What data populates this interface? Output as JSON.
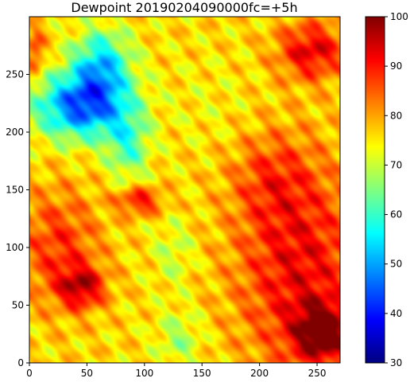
{
  "chart_data": {
    "type": "heatmap",
    "title": "Dewpoint 20190204090000fc=+5h",
    "xlabel": "",
    "ylabel": "",
    "xlim": [
      0,
      270
    ],
    "ylim": [
      0,
      300
    ],
    "x_ticks": [
      "0",
      "50",
      "100",
      "150",
      "200",
      "250"
    ],
    "y_ticks": [
      "0",
      "50",
      "100",
      "150",
      "200",
      "250"
    ],
    "colorbar": {
      "colormap": "jet",
      "range": [
        30,
        100
      ],
      "ticks": [
        "30",
        "40",
        "50",
        "60",
        "70",
        "80",
        "90",
        "100"
      ]
    },
    "field_sketch": {
      "background_value": 76,
      "regions": [
        {
          "name": "northwest-dry-tongue",
          "x": 45,
          "y": 222,
          "rx": 40,
          "ry": 28,
          "value": 45
        },
        {
          "name": "northwest-dry-streak",
          "x": 62,
          "y": 258,
          "rx": 25,
          "ry": 30,
          "value": 55
        },
        {
          "name": "upper-cyan-band",
          "x": 85,
          "y": 188,
          "rx": 18,
          "ry": 30,
          "value": 62
        },
        {
          "name": "west-moist-area",
          "x": 25,
          "y": 100,
          "rx": 35,
          "ry": 50,
          "value": 88
        },
        {
          "name": "southwest-core",
          "x": 45,
          "y": 65,
          "rx": 20,
          "ry": 18,
          "value": 93
        },
        {
          "name": "southeast-moist",
          "x": 235,
          "y": 80,
          "rx": 55,
          "ry": 90,
          "value": 92
        },
        {
          "name": "southeast-core",
          "x": 255,
          "y": 25,
          "rx": 25,
          "ry": 25,
          "value": 97
        },
        {
          "name": "northeast-moist",
          "x": 245,
          "y": 270,
          "rx": 30,
          "ry": 25,
          "value": 93
        },
        {
          "name": "central-green",
          "x": 125,
          "y": 95,
          "rx": 18,
          "ry": 30,
          "value": 70
        },
        {
          "name": "central-north-yellow",
          "x": 160,
          "y": 220,
          "rx": 40,
          "ry": 40,
          "value": 74
        },
        {
          "name": "mid-band-red",
          "x": 95,
          "y": 140,
          "rx": 20,
          "ry": 12,
          "value": 91
        },
        {
          "name": "south-center-green",
          "x": 130,
          "y": 20,
          "rx": 20,
          "ry": 25,
          "value": 68
        },
        {
          "name": "east-center-orange",
          "x": 210,
          "y": 160,
          "rx": 35,
          "ry": 40,
          "value": 84
        },
        {
          "name": "northwest-corner-red",
          "x": 5,
          "y": 270,
          "rx": 8,
          "ry": 20,
          "value": 88
        }
      ]
    }
  }
}
